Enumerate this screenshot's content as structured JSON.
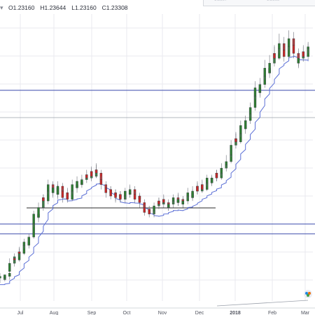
{
  "legend": {
    "dropdown": "▾",
    "open": "O1.23160",
    "high": "H1.23644",
    "low": "L1.23160",
    "close": "C1.23308"
  },
  "colors": {
    "bull": "#2e7d32",
    "bear": "#c62828",
    "hline": "#3949ab",
    "ma": "#5b6fd6",
    "support": "#2b2b2b",
    "grid": "#e8eaef",
    "trend": "#9aa0aa"
  },
  "chart_data": {
    "type": "candlestick",
    "x_ticks": [
      "Jul",
      "Aug",
      "Sep",
      "Oct",
      "Nov",
      "Dec",
      "2018",
      "Feb",
      "Mar"
    ],
    "ohlc_series": [
      [
        0.0,
        0.09,
        0.1,
        0.06,
        0.12
      ],
      [
        0.01,
        0.08,
        0.1,
        0.07,
        0.11
      ],
      [
        0.01,
        0.09,
        0.11,
        0.08,
        0.1
      ],
      [
        0.02,
        0.1,
        0.12,
        0.08,
        0.13
      ],
      [
        0.02,
        0.13,
        0.18,
        0.12,
        0.21
      ],
      [
        0.03,
        0.18,
        0.22,
        0.16,
        0.24
      ],
      [
        0.03,
        0.21,
        0.2,
        0.18,
        0.22
      ],
      [
        0.04,
        0.2,
        0.25,
        0.19,
        0.28
      ],
      [
        0.04,
        0.25,
        0.24,
        0.22,
        0.27
      ],
      [
        0.05,
        0.24,
        0.29,
        0.23,
        0.31
      ],
      [
        0.05,
        0.29,
        0.31,
        0.27,
        0.33
      ],
      [
        0.06,
        0.31,
        0.29,
        0.27,
        0.33
      ],
      [
        0.06,
        0.29,
        0.34,
        0.28,
        0.36
      ],
      [
        0.07,
        0.34,
        0.42,
        0.33,
        0.45
      ],
      [
        0.07,
        0.42,
        0.48,
        0.4,
        0.5
      ],
      [
        0.08,
        0.48,
        0.46,
        0.43,
        0.5
      ],
      [
        0.08,
        0.46,
        0.52,
        0.45,
        0.55
      ],
      [
        0.09,
        0.52,
        0.58,
        0.5,
        0.6
      ],
      [
        0.09,
        0.58,
        0.56,
        0.52,
        0.6
      ],
      [
        0.1,
        0.56,
        0.62,
        0.54,
        0.64
      ],
      [
        0.1,
        0.62,
        0.66,
        0.6,
        0.69
      ],
      [
        0.11,
        0.66,
        0.61,
        0.58,
        0.68
      ],
      [
        0.11,
        0.61,
        0.64,
        0.59,
        0.67
      ],
      [
        0.12,
        0.64,
        0.6,
        0.57,
        0.66
      ],
      [
        0.12,
        0.6,
        0.65,
        0.58,
        0.68
      ],
      [
        0.13,
        0.65,
        0.62,
        0.6,
        0.67
      ],
      [
        0.13,
        0.62,
        0.58,
        0.55,
        0.64
      ],
      [
        0.14,
        0.58,
        0.61,
        0.56,
        0.63
      ],
      [
        0.14,
        0.61,
        0.57,
        0.55,
        0.64
      ],
      [
        0.15,
        0.57,
        0.62,
        0.56,
        0.65
      ],
      [
        0.15,
        0.62,
        0.66,
        0.6,
        0.69
      ],
      [
        0.16,
        0.66,
        0.64,
        0.61,
        0.68
      ],
      [
        0.16,
        0.64,
        0.68,
        0.63,
        0.71
      ],
      [
        0.17,
        0.68,
        0.66,
        0.64,
        0.7
      ],
      [
        0.17,
        0.66,
        0.69,
        0.65,
        0.72
      ],
      [
        0.18,
        0.69,
        0.72,
        0.67,
        0.75
      ],
      [
        0.18,
        0.72,
        0.7,
        0.67,
        0.74
      ],
      [
        0.19,
        0.7,
        0.74,
        0.69,
        0.77
      ],
      [
        0.19,
        0.74,
        0.71,
        0.68,
        0.76
      ],
      [
        0.2,
        0.71,
        0.75,
        0.7,
        0.78
      ],
      [
        0.2,
        0.75,
        0.73,
        0.7,
        0.79
      ],
      [
        0.21,
        0.73,
        0.69,
        0.66,
        0.75
      ],
      [
        0.21,
        0.69,
        0.66,
        0.63,
        0.71
      ],
      [
        0.22,
        0.66,
        0.64,
        0.62,
        0.68
      ],
      [
        0.22,
        0.64,
        0.61,
        0.58,
        0.66
      ],
      [
        0.23,
        0.61,
        0.63,
        0.59,
        0.65
      ],
      [
        0.23,
        0.63,
        0.59,
        0.57,
        0.65
      ],
      [
        0.24,
        0.59,
        0.61,
        0.56,
        0.63
      ],
      [
        0.24,
        0.61,
        0.58,
        0.55,
        0.63
      ],
      [
        0.25,
        0.58,
        0.6,
        0.56,
        0.62
      ],
      [
        0.25,
        0.6,
        0.57,
        0.55,
        0.62
      ],
      [
        0.26,
        0.57,
        0.59,
        0.55,
        0.61
      ],
      [
        0.26,
        0.59,
        0.62,
        0.57,
        0.64
      ],
      [
        0.27,
        0.62,
        0.6,
        0.58,
        0.65
      ],
      [
        0.27,
        0.6,
        0.63,
        0.58,
        0.66
      ],
      [
        0.28,
        0.63,
        0.6,
        0.58,
        0.65
      ],
      [
        0.28,
        0.6,
        0.57,
        0.55,
        0.62
      ],
      [
        0.29,
        0.57,
        0.59,
        0.55,
        0.61
      ],
      [
        0.29,
        0.59,
        0.55,
        0.52,
        0.6
      ],
      [
        0.3,
        0.55,
        0.52,
        0.49,
        0.57
      ],
      [
        0.3,
        0.52,
        0.49,
        0.47,
        0.54
      ],
      [
        0.31,
        0.49,
        0.51,
        0.47,
        0.53
      ],
      [
        0.31,
        0.51,
        0.48,
        0.46,
        0.53
      ],
      [
        0.32,
        0.48,
        0.5,
        0.46,
        0.52
      ],
      [
        0.32,
        0.5,
        0.53,
        0.48,
        0.55
      ],
      [
        0.33,
        0.53,
        0.56,
        0.51,
        0.58
      ],
      [
        0.33,
        0.56,
        0.54,
        0.52,
        0.58
      ],
      [
        0.34,
        0.54,
        0.57,
        0.53,
        0.6
      ],
      [
        0.34,
        0.57,
        0.55,
        0.52,
        0.59
      ],
      [
        0.35,
        0.55,
        0.52,
        0.5,
        0.57
      ],
      [
        0.35,
        0.52,
        0.54,
        0.5,
        0.56
      ],
      [
        0.36,
        0.54,
        0.56,
        0.52,
        0.58
      ],
      [
        0.36,
        0.56,
        0.58,
        0.54,
        0.6
      ],
      [
        0.37,
        0.58,
        0.55,
        0.53,
        0.61
      ],
      [
        0.37,
        0.55,
        0.57,
        0.53,
        0.6
      ],
      [
        0.38,
        0.57,
        0.54,
        0.52,
        0.59
      ],
      [
        0.38,
        0.54,
        0.56,
        0.52,
        0.58
      ],
      [
        0.39,
        0.56,
        0.59,
        0.54,
        0.61
      ],
      [
        0.39,
        0.59,
        0.61,
        0.57,
        0.64
      ],
      [
        0.4,
        0.61,
        0.58,
        0.56,
        0.63
      ],
      [
        0.4,
        0.58,
        0.62,
        0.57,
        0.65
      ],
      [
        0.41,
        0.62,
        0.65,
        0.6,
        0.68
      ],
      [
        0.41,
        0.65,
        0.62,
        0.6,
        0.67
      ],
      [
        0.42,
        0.62,
        0.66,
        0.61,
        0.69
      ],
      [
        0.42,
        0.66,
        0.63,
        0.61,
        0.68
      ],
      [
        0.43,
        0.63,
        0.67,
        0.62,
        0.69
      ],
      [
        0.43,
        0.67,
        0.7,
        0.65,
        0.72
      ],
      [
        0.44,
        0.7,
        0.67,
        0.65,
        0.71
      ],
      [
        0.44,
        0.67,
        0.7,
        0.66,
        0.72
      ],
      [
        0.45,
        0.7,
        0.73,
        0.68,
        0.75
      ],
      [
        0.45,
        0.73,
        0.7,
        0.68,
        0.75
      ],
      [
        0.46,
        0.7,
        0.73,
        0.69,
        0.76
      ],
      [
        0.46,
        0.73,
        0.76,
        0.71,
        0.79
      ],
      [
        0.47,
        0.76,
        0.78,
        0.74,
        0.81
      ],
      [
        0.47,
        0.78,
        0.8,
        0.76,
        0.84
      ],
      [
        0.48,
        0.8,
        0.84,
        0.79,
        0.88
      ],
      [
        0.48,
        0.84,
        0.9,
        0.83,
        0.93
      ],
      [
        0.49,
        0.9,
        0.94,
        0.88,
        0.97
      ],
      [
        0.49,
        0.94,
        0.92,
        0.9,
        0.98
      ],
      [
        0.5,
        0.92,
        0.97,
        0.91,
        1.0
      ],
      [
        0.5,
        0.97,
        1.02,
        0.95,
        1.05
      ],
      [
        0.51,
        1.02,
        1.0,
        0.97,
        1.06
      ],
      [
        0.51,
        1.0,
        1.05,
        0.99,
        1.08
      ],
      [
        0.52,
        1.05,
        1.09,
        1.03,
        1.12
      ],
      [
        0.52,
        1.09,
        1.13,
        1.07,
        1.16
      ],
      [
        0.53,
        1.13,
        1.2,
        1.11,
        1.24
      ],
      [
        0.53,
        1.2,
        1.25,
        1.18,
        1.29
      ],
      [
        0.54,
        1.25,
        1.22,
        1.19,
        1.28
      ],
      [
        0.54,
        1.22,
        1.27,
        1.2,
        1.31
      ],
      [
        0.55,
        1.27,
        1.32,
        1.25,
        1.36
      ],
      [
        0.55,
        1.32,
        1.37,
        1.3,
        1.42
      ],
      [
        0.56,
        1.37,
        1.34,
        1.31,
        1.4
      ],
      [
        0.56,
        1.34,
        1.4,
        1.33,
        1.45
      ],
      [
        0.57,
        1.4,
        1.46,
        1.38,
        1.51
      ],
      [
        0.57,
        1.46,
        1.43,
        1.4,
        1.5
      ],
      [
        0.58,
        1.43,
        1.49,
        1.42,
        1.53
      ],
      [
        0.58,
        1.49,
        1.52,
        1.46,
        1.58
      ],
      [
        0.59,
        1.52,
        1.48,
        1.45,
        1.56
      ],
      [
        0.59,
        1.48,
        1.44,
        1.41,
        1.52
      ],
      [
        0.6,
        1.44,
        1.5,
        1.43,
        1.54
      ],
      [
        0.6,
        1.5,
        1.55,
        1.48,
        1.6
      ],
      [
        0.61,
        1.55,
        1.51,
        1.48,
        1.59
      ],
      [
        0.61,
        1.51,
        1.46,
        1.43,
        1.55
      ],
      [
        0.62,
        1.46,
        1.4,
        1.37,
        1.49
      ],
      [
        0.62,
        1.4,
        1.43,
        1.38,
        1.47
      ],
      [
        0.63,
        1.43,
        1.47,
        1.41,
        1.5
      ],
      [
        0.63,
        1.47,
        1.44,
        1.41,
        1.51
      ],
      [
        0.64,
        1.44,
        1.49,
        1.42,
        1.52
      ],
      [
        0.64,
        1.49,
        1.5,
        1.46,
        1.53
      ]
    ]
  }
}
